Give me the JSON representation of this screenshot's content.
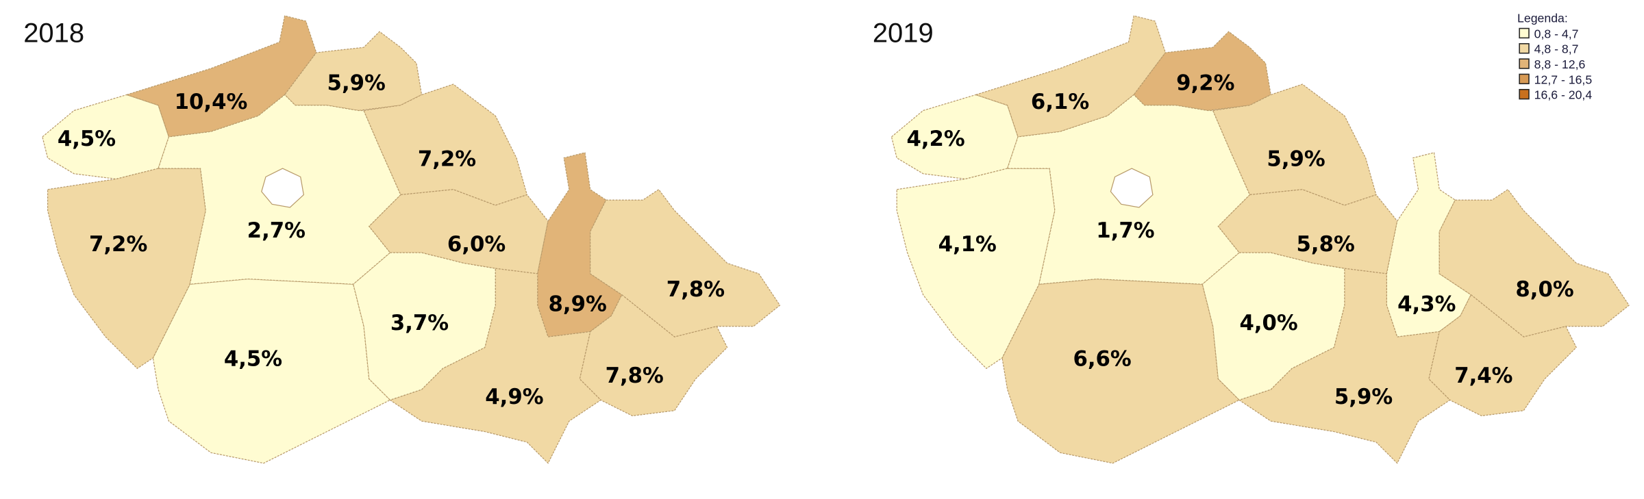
{
  "chart_data": [
    {
      "type": "choropleth",
      "title": "2018",
      "regions": [
        {
          "id": "karlovarsky",
          "label": "4,5%",
          "value": 4.5,
          "class": 0
        },
        {
          "id": "ustecky",
          "label": "10,4%",
          "value": 10.4,
          "class": 2
        },
        {
          "id": "liberecky",
          "label": "5,9%",
          "value": 5.9,
          "class": 1
        },
        {
          "id": "kralovehradecky",
          "label": "7,2%",
          "value": 7.2,
          "class": 1
        },
        {
          "id": "pardubicky",
          "label": "6,0%",
          "value": 6.0,
          "class": 1
        },
        {
          "id": "olomoucky",
          "label": "8,9%",
          "value": 8.9,
          "class": 2
        },
        {
          "id": "moravskoslezsky",
          "label": "7,8%",
          "value": 7.8,
          "class": 1
        },
        {
          "id": "zlinsky",
          "label": "7,8%",
          "value": 7.8,
          "class": 1
        },
        {
          "id": "jihomoravsky",
          "label": "4,9%",
          "value": 4.9,
          "class": 1
        },
        {
          "id": "vysocina",
          "label": "3,7%",
          "value": 3.7,
          "class": 0
        },
        {
          "id": "jihocesky",
          "label": "4,5%",
          "value": 4.5,
          "class": 0
        },
        {
          "id": "plzensky",
          "label": "7,2%",
          "value": 7.2,
          "class": 1
        },
        {
          "id": "stredocesky",
          "label": "2,7%",
          "value": 2.7,
          "class": 0
        }
      ]
    },
    {
      "type": "choropleth",
      "title": "2019",
      "regions": [
        {
          "id": "karlovarsky",
          "label": "4,2%",
          "value": 4.2,
          "class": 0
        },
        {
          "id": "ustecky",
          "label": "6,1%",
          "value": 6.1,
          "class": 1
        },
        {
          "id": "liberecky",
          "label": "9,2%",
          "value": 9.2,
          "class": 2
        },
        {
          "id": "kralovehradecky",
          "label": "5,9%",
          "value": 5.9,
          "class": 1
        },
        {
          "id": "pardubicky",
          "label": "5,8%",
          "value": 5.8,
          "class": 1
        },
        {
          "id": "olomoucky",
          "label": "4,3%",
          "value": 4.3,
          "class": 0
        },
        {
          "id": "moravskoslezsky",
          "label": "8,0%",
          "value": 8.0,
          "class": 1
        },
        {
          "id": "zlinsky",
          "label": "7,4%",
          "value": 7.4,
          "class": 1
        },
        {
          "id": "jihomoravsky",
          "label": "5,9%",
          "value": 5.9,
          "class": 1
        },
        {
          "id": "vysocina",
          "label": "4,0%",
          "value": 4.0,
          "class": 0
        },
        {
          "id": "jihocesky",
          "label": "6,6%",
          "value": 6.6,
          "class": 1
        },
        {
          "id": "plzensky",
          "label": "4,1%",
          "value": 4.1,
          "class": 0
        },
        {
          "id": "stredocesky",
          "label": "1,7%",
          "value": 1.7,
          "class": 0
        }
      ]
    }
  ],
  "legend": {
    "title": "Legenda:",
    "classes": [
      {
        "label": "0,8 - 4,7",
        "color": "#FFFCD2"
      },
      {
        "label": "4,8 - 8,7",
        "color": "#F1D9A4"
      },
      {
        "label": "8,8 - 12,6",
        "color": "#E1B478"
      },
      {
        "label": "12,7 - 16,5",
        "color": "#D79A55"
      },
      {
        "label": "16,6 - 20,4",
        "color": "#C8701E"
      }
    ]
  }
}
